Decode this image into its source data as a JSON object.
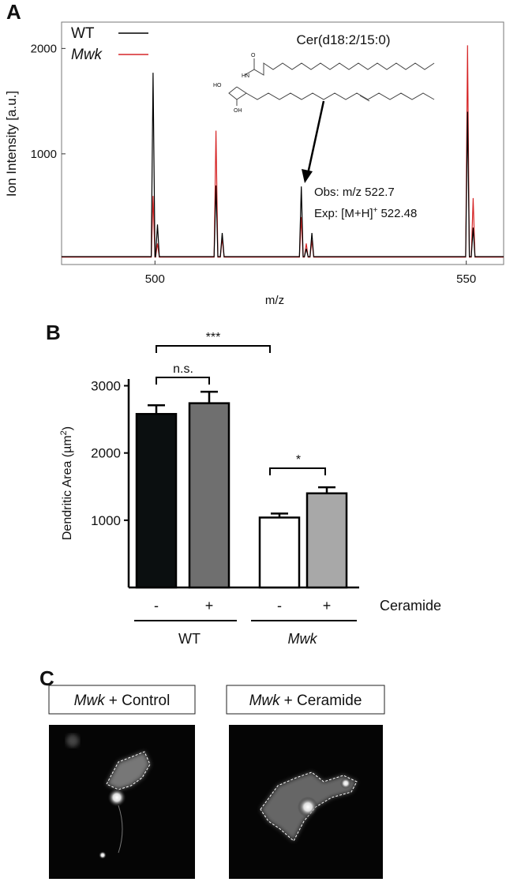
{
  "panel_labels": [
    "A",
    "B",
    "C"
  ],
  "chart_data": [
    {
      "type": "line",
      "ylabel": "Ion Intensity [a.u.]",
      "xlabel": "m/z",
      "compound": "Cer(d18:2/15:0)",
      "obs": "Obs: m/z 522.7",
      "exp": [
        "Exp: [M+H]",
        "+",
        "522.48"
      ],
      "xlim": [
        485,
        556
      ],
      "ylim": [
        -50,
        2250
      ],
      "xticks": [
        500,
        550
      ],
      "yticks": [
        1000,
        2000
      ],
      "x": [
        485,
        499.4,
        499.7,
        500.0,
        500.1,
        500.4,
        500.7,
        509.5,
        509.8,
        510.1,
        510.5,
        510.8,
        511.1,
        523.2,
        523.5,
        523.8,
        524.0,
        524.3,
        524.6,
        524.9,
        525.2,
        525.5,
        549.9,
        550.2,
        550.5,
        550.8,
        551.1,
        551.4,
        556
      ],
      "series": [
        {
          "name": "Mwk",
          "color": "#d62728",
          "italic": true,
          "values": [
            20,
            20,
            600,
            20,
            20,
            150,
            20,
            20,
            1220,
            20,
            20,
            200,
            20,
            20,
            400,
            20,
            20,
            150,
            20,
            20,
            180,
            20,
            20,
            2030,
            20,
            20,
            580,
            20,
            20
          ]
        },
        {
          "name": "WT",
          "color": "#000000",
          "italic": false,
          "values": [
            25,
            25,
            1770,
            25,
            25,
            330,
            25,
            25,
            700,
            25,
            25,
            250,
            25,
            25,
            690,
            25,
            25,
            100,
            25,
            25,
            250,
            25,
            25,
            1400,
            25,
            25,
            300,
            25,
            25
          ]
        }
      ]
    },
    {
      "type": "bar",
      "ylabel": [
        "Dendritic Area (µm",
        "2",
        ")"
      ],
      "categories": [
        "-",
        "+",
        "-",
        "+"
      ],
      "values": [
        2580,
        2740,
        1040,
        1400
      ],
      "errors": [
        130,
        170,
        60,
        90
      ],
      "colors": [
        "#0b0f10",
        "#6f6f6f",
        "#ffffff",
        "#a8a8a8"
      ],
      "ylim": [
        0,
        3100
      ],
      "yticks": [
        1000,
        2000,
        3000
      ],
      "treatment": "Ceramide",
      "groups": [
        "WT",
        "Mwk"
      ],
      "significance": [
        "***",
        "n.s.",
        "*"
      ]
    }
  ],
  "panel_c": {
    "images": [
      {
        "strain": "Mwk",
        "condition": "+ Control"
      },
      {
        "strain": "Mwk",
        "condition": "+ Ceramide"
      }
    ]
  }
}
